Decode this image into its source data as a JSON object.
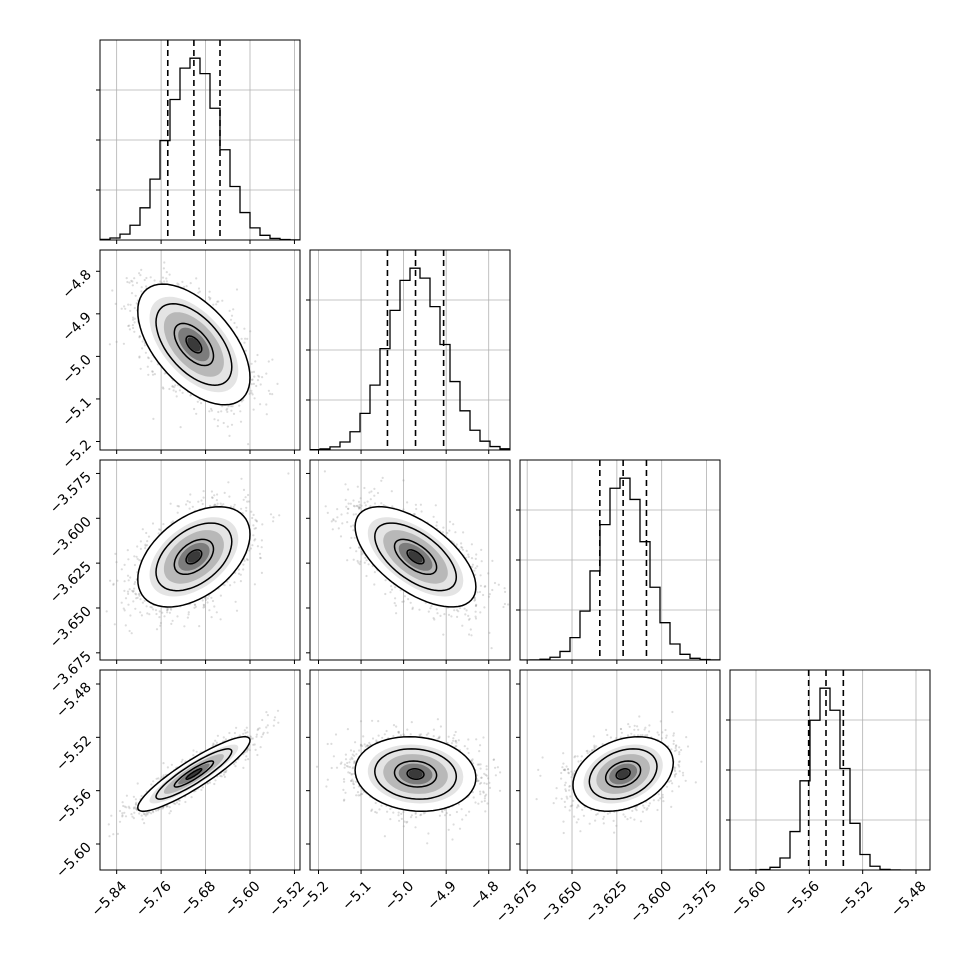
{
  "chart_data": {
    "type": "corner",
    "title": "",
    "parameters": [
      {
        "xlabel": "",
        "range": [
          -5.87,
          -5.51
        ],
        "ticks": [
          "−5.84",
          "−5.76",
          "−5.68",
          "−5.60",
          "−5.52"
        ],
        "tick_values": [
          -5.84,
          -5.76,
          -5.68,
          -5.6,
          -5.52
        ],
        "quantiles": [
          -5.748,
          -5.701,
          -5.654
        ],
        "median": -5.701,
        "sigma": 0.047
      },
      {
        "xlabel": "",
        "range": [
          -5.22,
          -4.75
        ],
        "ticks": [
          "−5.2",
          "−5.1",
          "−5.0",
          "−4.9",
          "−4.8"
        ],
        "tick_values": [
          -5.2,
          -5.1,
          -5.0,
          -4.9,
          -4.8
        ],
        "quantiles": [
          -5.038,
          -4.972,
          -4.906
        ],
        "median": -4.972,
        "sigma": 0.066
      },
      {
        "xlabel": "",
        "range": [
          -3.679,
          -3.5675
        ],
        "ticks": [
          "−3.675",
          "−3.650",
          "−3.625",
          "−3.600",
          "−3.575"
        ],
        "tick_values": [
          -3.675,
          -3.65,
          -3.625,
          -3.6,
          -3.575
        ],
        "quantiles": [
          -3.6345,
          -3.6215,
          -3.6085
        ],
        "median": -3.6215,
        "sigma": 0.013
      },
      {
        "xlabel": "",
        "range": [
          -5.6195,
          -5.4695
        ],
        "ticks": [
          "−5.60",
          "−5.56",
          "−5.52",
          "−5.48"
        ],
        "tick_values": [
          -5.6,
          -5.56,
          -5.52,
          -5.48
        ],
        "quantiles": [
          -5.5605,
          -5.5475,
          -5.5345
        ],
        "median": -5.5475,
        "sigma": 0.013
      }
    ],
    "correlations": [
      [
        1.0,
        -0.55,
        0.45,
        0.9
      ],
      [
        -0.55,
        1.0,
        -0.6,
        -0.1
      ],
      [
        0.45,
        -0.6,
        1.0,
        0.3
      ],
      [
        0.9,
        -0.1,
        0.3,
        1.0
      ]
    ],
    "histogram_bins": 20,
    "grid": true,
    "quantile_style": "dashed",
    "contour_levels": 3
  }
}
